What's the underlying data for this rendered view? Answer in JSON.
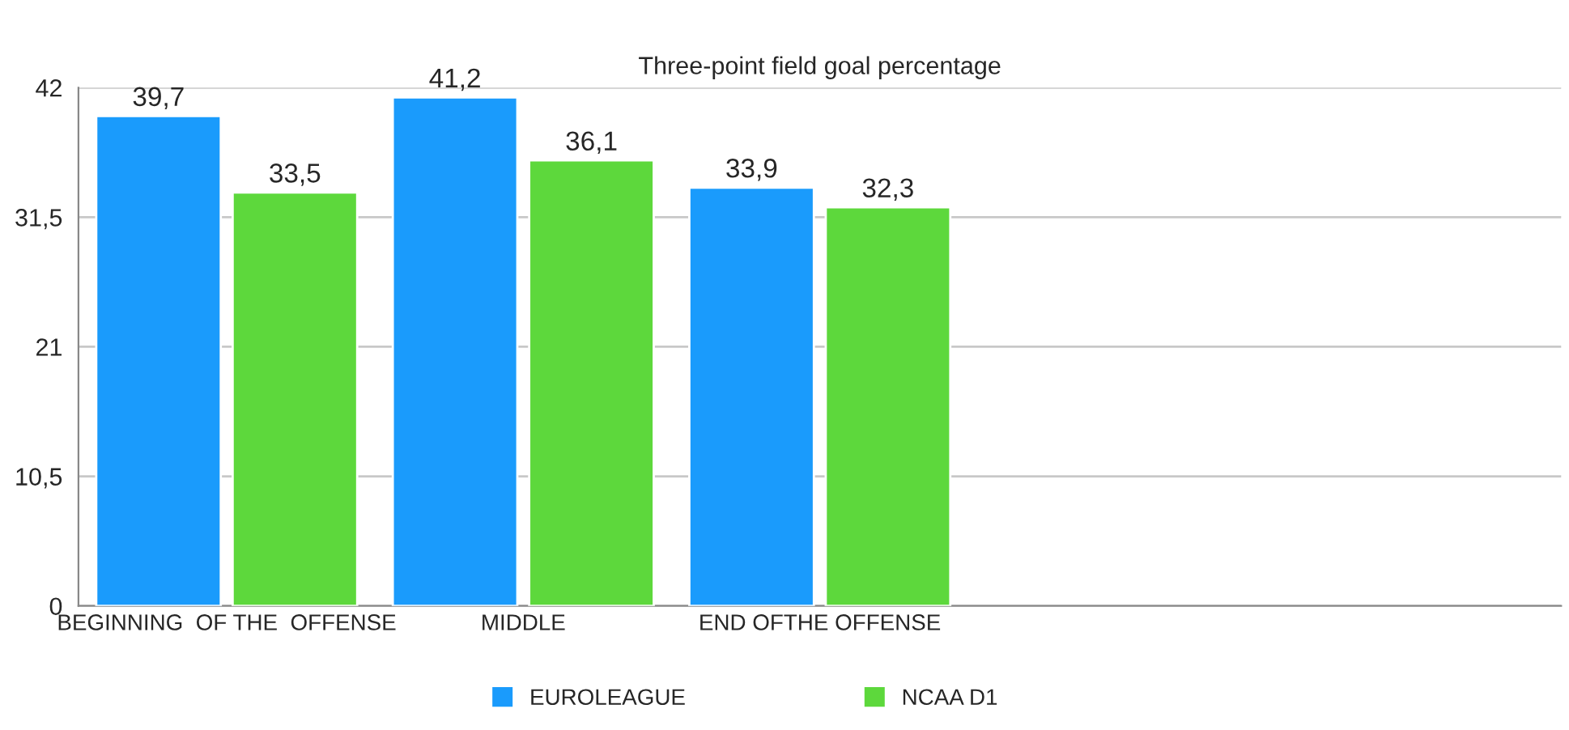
{
  "chart_data": {
    "type": "bar",
    "title": "Three-point field goal percentage",
    "categories": [
      "BEGINNING  OF THE  OFFENSE",
      "MIDDLE",
      "END OFTHE OFFENSE",
      null,
      null
    ],
    "series": [
      {
        "name": "EUROLEAGUE",
        "color": "#1a9bfc",
        "values": [
          39.7,
          41.2,
          33.9,
          null,
          null
        ],
        "value_labels": [
          "39,7",
          "41,2",
          "33,9",
          null,
          null
        ]
      },
      {
        "name": "NCAA D1",
        "color": "#5dd83c",
        "values": [
          33.5,
          36.1,
          32.3,
          null,
          null
        ],
        "value_labels": [
          "33,5",
          "36,1",
          "32,3",
          null,
          null
        ]
      }
    ],
    "ylim": [
      0,
      42
    ],
    "yticks": [
      0,
      {
        "value": 10.5,
        "label": "10,5"
      },
      21,
      {
        "value": 31.5,
        "label": "31,5"
      },
      42
    ],
    "grid": "y",
    "legend": "bottom"
  }
}
